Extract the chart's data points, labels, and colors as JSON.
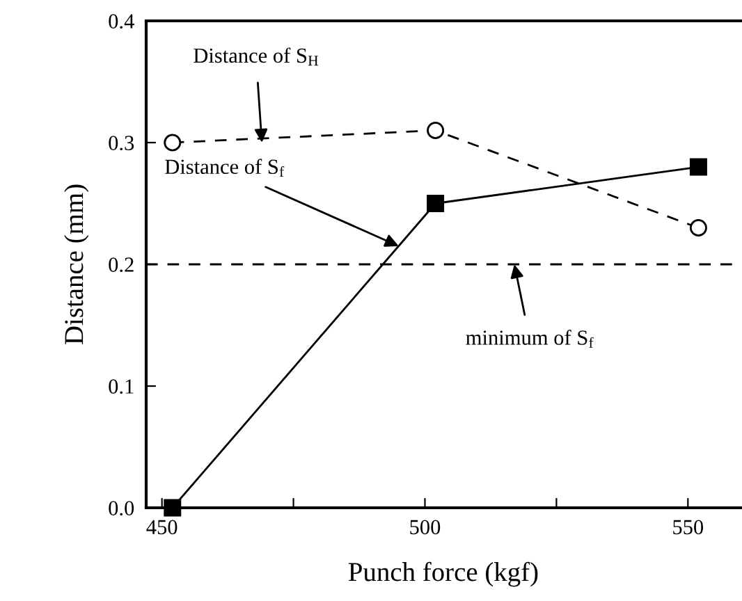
{
  "chart_data": {
    "type": "line",
    "xlabel": "Punch force (kgf)",
    "ylabel": "Distance (mm)",
    "xlim": [
      447,
      560
    ],
    "xticks": [
      450,
      {
        "value": 475,
        "label": null
      },
      500,
      {
        "value": 525,
        "label": null
      },
      550
    ],
    "ylim": [
      0,
      0.4
    ],
    "yticks": [
      {
        "value": 0,
        "label": "0.0"
      },
      0.1,
      0.2,
      0.3,
      0.4
    ],
    "grid": false,
    "legend": false,
    "series": [
      {
        "color": "#000000",
        "x": [
          452,
          502,
          552
        ],
        "values": [
          0.3,
          0.31,
          0.23
        ],
        "marker": "circle",
        "line_style": "dashed"
      },
      {
        "color": "#000000",
        "x": [
          452,
          502,
          552
        ],
        "values": [
          0.0,
          0.25,
          0.28
        ],
        "marker": "square",
        "line_style": "solid"
      }
    ],
    "ref_lines": [
      {
        "axis": "y",
        "value": 0.2,
        "label": null,
        "color": "#000000",
        "line_style": "dashed"
      }
    ],
    "annotations": [
      {
        "text": "Distance of S$_{H}$",
        "x": 469,
        "y": 0.3
      },
      {
        "text": "Distance of S$_{f}$",
        "x": 495,
        "y": 0.215
      },
      {
        "text": "minimum of S$_{f}$",
        "x": 517,
        "y": 0.2
      }
    ]
  }
}
